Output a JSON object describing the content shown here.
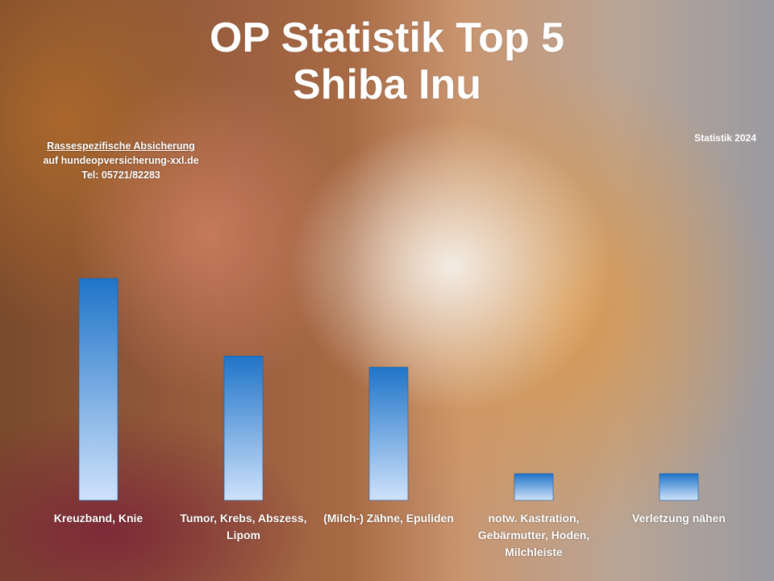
{
  "chart_data": {
    "type": "bar",
    "title": "OP Statistik Top 5",
    "subtitle": "Shiba Inu",
    "categories": [
      "Kreuzband, Knie",
      "Tumor, Krebs, Abszess, Lipom",
      "(Milch-) Zähne, Epuliden",
      "notw. Kastration, Gebärmutter, Hoden, Milchleiste",
      "Verletzung nähen"
    ],
    "values": [
      100,
      65,
      60,
      12,
      12
    ],
    "xlabel": "",
    "ylabel": "",
    "ylim": [
      0,
      100
    ],
    "grid": false,
    "legend": "none",
    "bar_gradient": [
      "#1f74c8",
      "#cfe2fb"
    ]
  },
  "info": {
    "line1": "Rassespezifische  Absicherung",
    "line2": "auf hundeopversicherung-xxl.de",
    "line3": "Tel: 05721/82283"
  },
  "year_label": "Statistik 2024"
}
